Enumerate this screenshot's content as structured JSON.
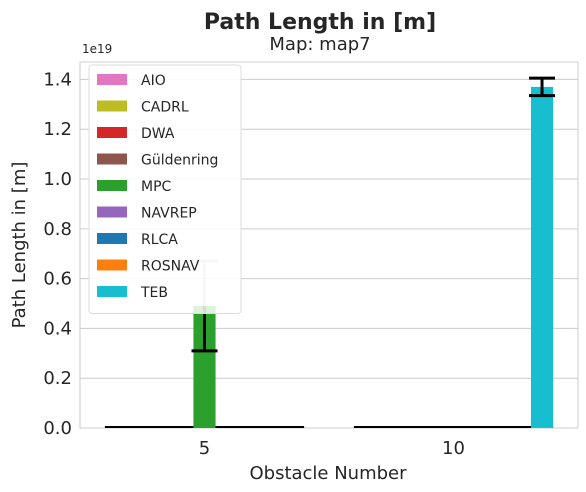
{
  "chart_data": {
    "type": "bar",
    "title": "Path Length in [m]",
    "subtitle": "Map: map7",
    "xlabel": "Obstacle Number",
    "ylabel": "Path Length in [m]",
    "y_offset_label": "1e19",
    "ylim": [
      0,
      1.47
    ],
    "yticks": [
      "0.0",
      "0.2",
      "0.4",
      "0.6",
      "0.8",
      "1.0",
      "1.2",
      "1.4"
    ],
    "categories": [
      "5",
      "10"
    ],
    "grid": "horizontal",
    "legend_position": "top-left",
    "series": [
      {
        "name": "AIO",
        "color": "#e377c2",
        "values": [
          0,
          0
        ]
      },
      {
        "name": "CADRL",
        "color": "#bcbd22",
        "values": [
          0,
          0
        ]
      },
      {
        "name": "DWA",
        "color": "#d62728",
        "values": [
          0,
          0
        ]
      },
      {
        "name": "Güldenring",
        "color": "#8c564b",
        "values": [
          0,
          0
        ]
      },
      {
        "name": "MPC",
        "color": "#2ca02c",
        "values": [
          0.49,
          0
        ],
        "error": [
          0.18,
          0
        ]
      },
      {
        "name": "NAVREP",
        "color": "#9467bd",
        "values": [
          0,
          0
        ]
      },
      {
        "name": "RLCA",
        "color": "#1f77b4",
        "values": [
          0,
          0
        ]
      },
      {
        "name": "ROSNAV",
        "color": "#ff7f0e",
        "values": [
          0,
          0
        ]
      },
      {
        "name": "TEB",
        "color": "#17becf",
        "values": [
          0,
          1.37
        ],
        "error": [
          0,
          0.035
        ]
      }
    ]
  }
}
